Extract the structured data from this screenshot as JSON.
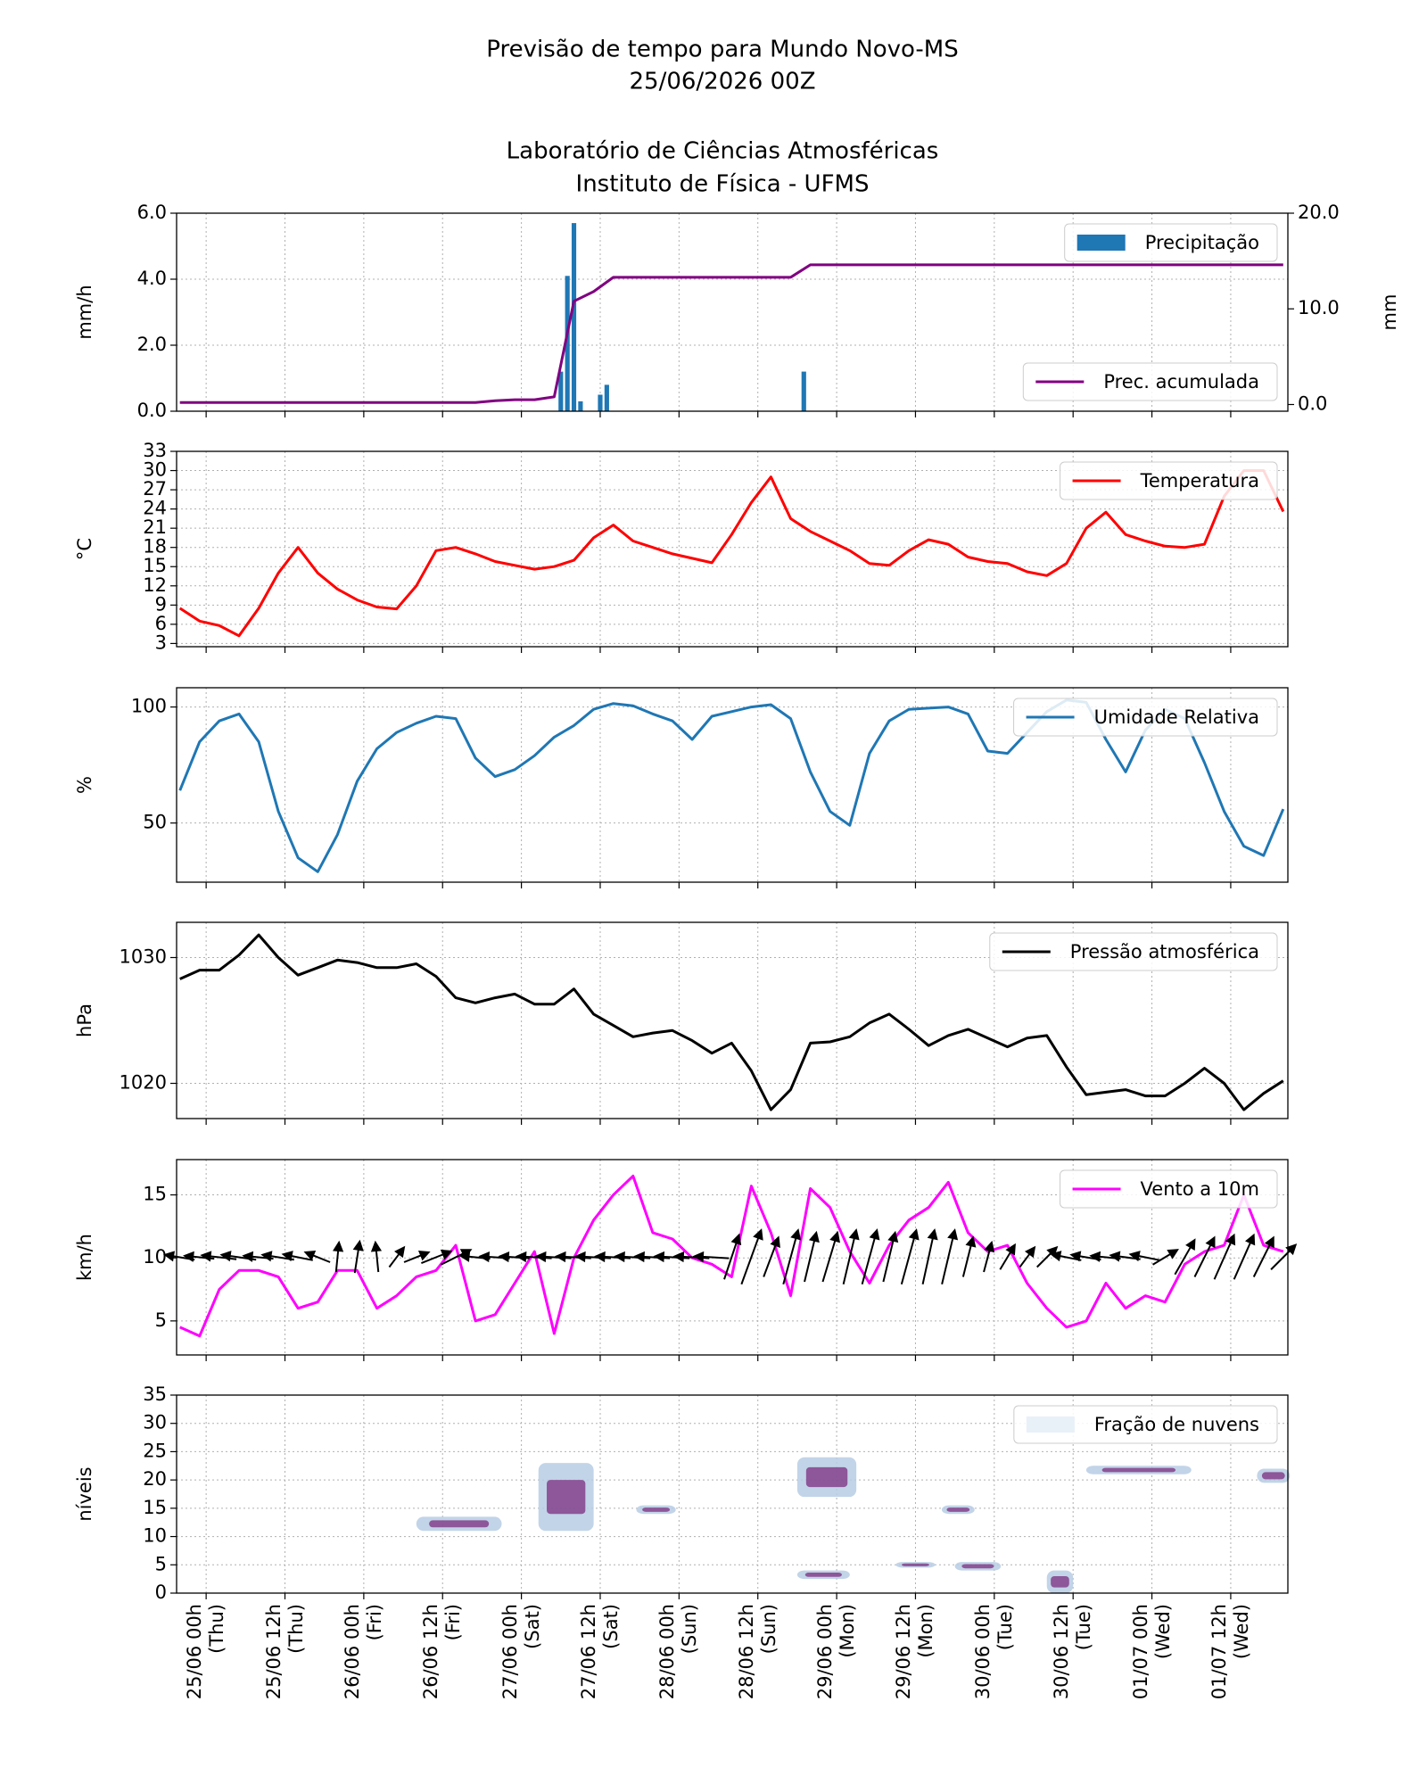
{
  "title": [
    "Previsão de tempo para Mundo Novo-MS",
    "25/06/2026 00Z"
  ],
  "subtitle": [
    "Laboratório de Ciências Atmosféricas",
    "Instituto de Física - UFMS"
  ],
  "time_axis": {
    "xlim": [
      -4.5,
      164.7
    ],
    "x": [
      -4,
      -1,
      2,
      5,
      8,
      11,
      14,
      17,
      20,
      23,
      26,
      29,
      32,
      35,
      38,
      41,
      44,
      47,
      50,
      53,
      56,
      59,
      62,
      65,
      68,
      71,
      74,
      77,
      80,
      83,
      86,
      89,
      92,
      95,
      98,
      101,
      104,
      107,
      110,
      113,
      116,
      119,
      122,
      125,
      128,
      131,
      134,
      137,
      140,
      143,
      146,
      149,
      152,
      155,
      158,
      161,
      164
    ],
    "xticks": [
      {
        "value": 0,
        "label": "25/06 00h\n(Thu)"
      },
      {
        "value": 12,
        "label": "25/06 12h\n(Thu)"
      },
      {
        "value": 24,
        "label": "26/06 00h\n(Fri)"
      },
      {
        "value": 36,
        "label": "26/06 12h\n(Fri)"
      },
      {
        "value": 48,
        "label": "27/06 00h\n(Sat)"
      },
      {
        "value": 60,
        "label": "27/06 12h\n(Sat)"
      },
      {
        "value": 72,
        "label": "28/06 00h\n(Sun)"
      },
      {
        "value": 84,
        "label": "28/06 12h\n(Sun)"
      },
      {
        "value": 96,
        "label": "29/06 00h\n(Mon)"
      },
      {
        "value": 108,
        "label": "29/06 12h\n(Mon)"
      },
      {
        "value": 120,
        "label": "30/06 00h\n(Tue)"
      },
      {
        "value": 132,
        "label": "30/06 12h\n(Tue)"
      },
      {
        "value": 144,
        "label": "01/07 00h\n(Wed)"
      },
      {
        "value": 156,
        "label": "01/07 12h\n(Wed)"
      }
    ]
  },
  "chart_data": [
    {
      "type": "bar",
      "ylabel": "mm/h",
      "y2label": "mm",
      "grid": true,
      "ylim": [
        0,
        6
      ],
      "yticks": [
        {
          "value": 0,
          "label": "0.0"
        },
        {
          "value": 2,
          "label": "2.0"
        },
        {
          "value": 4,
          "label": "4.0"
        },
        {
          "value": 6,
          "label": "6.0"
        }
      ],
      "y2lim": [
        -0.7,
        20
      ],
      "y2ticks": [
        {
          "value": 0,
          "label": "0.0"
        },
        {
          "value": 10,
          "label": "10.0"
        },
        {
          "value": 20,
          "label": "20.0"
        }
      ],
      "series": [
        {
          "name": "Precipitação",
          "type": "bar",
          "color": "#1f77b4",
          "legend": "upper right",
          "x": [
            54,
            55,
            56,
            57,
            60,
            61,
            91
          ],
          "values": [
            1.2,
            4.1,
            5.7,
            0.3,
            0.5,
            0.8,
            1.2
          ]
        },
        {
          "name": "Prec. acumulada",
          "type": "line",
          "axis": "y2",
          "color": "#800080",
          "legend": "lower right",
          "values": [
            0.2,
            0.2,
            0.2,
            0.2,
            0.2,
            0.2,
            0.2,
            0.2,
            0.2,
            0.2,
            0.2,
            0.2,
            0.2,
            0.2,
            0.2,
            0.2,
            0.4,
            0.5,
            0.5,
            0.8,
            10.8,
            11.8,
            13.3,
            13.3,
            13.3,
            13.3,
            13.3,
            13.3,
            13.3,
            13.3,
            13.3,
            13.3,
            14.6,
            14.6,
            14.6,
            14.6,
            14.6,
            14.6,
            14.6,
            14.6,
            14.6,
            14.6,
            14.6,
            14.6,
            14.6,
            14.6,
            14.6,
            14.6,
            14.6,
            14.6,
            14.6,
            14.6,
            14.6,
            14.6,
            14.6,
            14.6,
            14.6
          ]
        }
      ]
    },
    {
      "type": "line",
      "ylabel": "°C",
      "grid": true,
      "ylim": [
        2.5,
        33
      ],
      "yticks": [
        3,
        6,
        9,
        12,
        15,
        18,
        21,
        24,
        27,
        30,
        33
      ],
      "series": [
        {
          "name": "Temperatura",
          "color": "#ff0000",
          "legend": "upper right",
          "values": [
            8.5,
            6.5,
            5.8,
            4.2,
            8.5,
            14,
            18,
            14,
            11.5,
            9.8,
            8.7,
            8.4,
            12,
            17.5,
            18,
            17,
            15.8,
            15.2,
            14.6,
            15,
            16,
            19.5,
            21.5,
            19,
            18,
            17,
            16.3,
            15.6,
            20,
            25,
            29,
            22.5,
            20.5,
            19,
            17.5,
            15.5,
            15.2,
            17.5,
            19.2,
            18.5,
            16.5,
            15.8,
            15.5,
            14.2,
            13.6,
            15.5,
            21,
            23.5,
            20,
            19,
            18.2,
            18,
            18.5,
            26,
            30,
            30,
            23.6
          ]
        }
      ]
    },
    {
      "type": "line",
      "ylabel": "%",
      "grid": true,
      "ylim": [
        24.5,
        108.3
      ],
      "yticks": [
        50,
        100
      ],
      "series": [
        {
          "name": "Umidade Relativa",
          "color": "#1f77b4",
          "legend": "upper right",
          "values": [
            64,
            85,
            94,
            97,
            85,
            55,
            35,
            29,
            45,
            68,
            82,
            89,
            93,
            96,
            95,
            78,
            70,
            73,
            79,
            87,
            92,
            99,
            101.5,
            100.5,
            97,
            94,
            86,
            96,
            98,
            100,
            101,
            95,
            72,
            55,
            49,
            80,
            94,
            99,
            99.5,
            100,
            97,
            81,
            80,
            89,
            98,
            103,
            102,
            86,
            72,
            90,
            99,
            95,
            76,
            55,
            40,
            36,
            56
          ]
        }
      ]
    },
    {
      "type": "line",
      "ylabel": "hPa",
      "grid": true,
      "ylim": [
        1017.2,
        1032.8
      ],
      "yticks": [
        1020,
        1030
      ],
      "series": [
        {
          "name": "Pressão atmosférica",
          "color": "#000000",
          "legend": "upper right",
          "values": [
            1028.3,
            1029,
            1029,
            1030.2,
            1031.8,
            1030,
            1028.6,
            1029.2,
            1029.8,
            1029.6,
            1029.2,
            1029.2,
            1029.5,
            1028.5,
            1026.8,
            1026.4,
            1026.8,
            1027.1,
            1026.3,
            1026.3,
            1027.5,
            1025.5,
            1024.6,
            1023.7,
            1024,
            1024.2,
            1023.4,
            1022.4,
            1023.2,
            1021,
            1017.9,
            1019.5,
            1023.2,
            1023.3,
            1023.7,
            1024.8,
            1025.5,
            1024.3,
            1023,
            1023.8,
            1024.3,
            1023.6,
            1022.9,
            1023.6,
            1023.8,
            1021.3,
            1019.1,
            1019.3,
            1019.5,
            1019,
            1019,
            1020,
            1021.2,
            1020,
            1017.9,
            1019.2,
            1020.2
          ]
        }
      ]
    },
    {
      "type": "line",
      "ylabel": "km/h",
      "grid": true,
      "ylim": [
        2.3,
        17.8
      ],
      "yticks": [
        5,
        10,
        15
      ],
      "series": [
        {
          "name": "Vento a 10m",
          "color": "#ff00ff",
          "legend": "upper right",
          "values": [
            4.5,
            3.8,
            7.5,
            9,
            9,
            8.5,
            6,
            6.5,
            9,
            9,
            6,
            7,
            8.5,
            9,
            11,
            5,
            5.5,
            8,
            10.5,
            4,
            10,
            13,
            15,
            16.5,
            12,
            11.5,
            10,
            9.5,
            8.5,
            15.7,
            12,
            7,
            15.5,
            14,
            10.5,
            8,
            11,
            13,
            14,
            16,
            12,
            10.5,
            11,
            8,
            6,
            4.5,
            5,
            8,
            6,
            7,
            6.5,
            9.5,
            10.5,
            11,
            15,
            11,
            10.5
          ]
        }
      ],
      "quiver": {
        "color": "#000000",
        "u": [
          -3,
          -3,
          -3.5,
          -3.5,
          -3,
          -3.2,
          -3,
          -2.5,
          0.3,
          0.5,
          -0.3,
          1.5,
          2.5,
          3,
          3,
          -3,
          -3,
          -3,
          -3.5,
          -3.5,
          -3.5,
          -3.5,
          -3.5,
          -3.5,
          -3.5,
          -3.5,
          -3.5,
          -3.5,
          1.5,
          2,
          1.5,
          1.5,
          1.2,
          1.5,
          1.3,
          1.5,
          1.2,
          1.5,
          1.2,
          1.3,
          1,
          0.8,
          1.5,
          1.5,
          2,
          -3,
          -3,
          -3,
          -3,
          -3,
          2.5,
          2,
          2,
          2,
          2,
          2,
          2.5
        ],
        "v": [
          0.5,
          0.3,
          0.4,
          0.5,
          0.3,
          0.5,
          0.6,
          1,
          3,
          3.2,
          3,
          2,
          1,
          1.2,
          1.5,
          0.3,
          0.2,
          0.2,
          0.2,
          0.2,
          0.2,
          0.2,
          0.2,
          0.2,
          0.2,
          0.2,
          0.2,
          0.2,
          4.5,
          5.5,
          4,
          5.5,
          5,
          5,
          5.5,
          5.5,
          5,
          5.5,
          5.5,
          5.5,
          4,
          3,
          2.5,
          2,
          2,
          0.6,
          0.5,
          0.3,
          0.4,
          0.6,
          1.5,
          3.5,
          4,
          4.5,
          4.5,
          4,
          2.5
        ]
      }
    },
    {
      "type": "contour",
      "ylabel": "níveis",
      "grid": true,
      "ylim": [
        0,
        35
      ],
      "yticks": [
        0,
        5,
        10,
        15,
        20,
        25,
        30,
        35
      ],
      "series": [
        {
          "name": "Fração de nuvens",
          "color": "#e8f0f8",
          "core_color": "#7b2d7f",
          "legend": "upper right",
          "patches": [
            {
              "x": [
                32,
                45
              ],
              "levels": [
                11,
                13.5
              ]
            },
            {
              "x": [
                50.6,
                59
              ],
              "levels": [
                11,
                23
              ]
            },
            {
              "x": [
                65.5,
                71.5
              ],
              "levels": [
                14,
                15.5
              ]
            },
            {
              "x": [
                90,
                99
              ],
              "levels": [
                17,
                24
              ]
            },
            {
              "x": [
                90,
                98
              ],
              "levels": [
                2.5,
                4
              ]
            },
            {
              "x": [
                105,
                111
              ],
              "levels": [
                4.5,
                5.5
              ]
            },
            {
              "x": [
                112,
                117
              ],
              "levels": [
                14,
                15.5
              ]
            },
            {
              "x": [
                114,
                121
              ],
              "levels": [
                4,
                5.5
              ]
            },
            {
              "x": [
                128,
                132
              ],
              "levels": [
                0,
                4
              ]
            },
            {
              "x": [
                134,
                150
              ],
              "levels": [
                21,
                22.5
              ]
            },
            {
              "x": [
                160,
                165
              ],
              "levels": [
                19.5,
                22
              ]
            }
          ]
        }
      ]
    }
  ]
}
